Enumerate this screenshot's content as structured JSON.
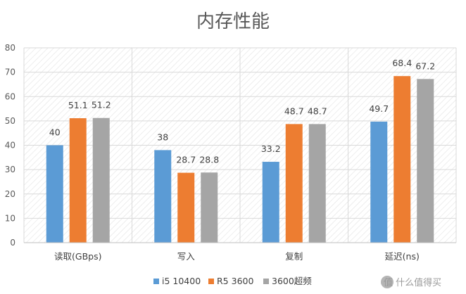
{
  "chart_data": {
    "type": "bar",
    "title": "内存性能",
    "xlabel": "",
    "ylabel": "",
    "categories": [
      "读取(GBps)",
      "写入",
      "复制",
      "延迟(ns)"
    ],
    "series": [
      {
        "name": "i5 10400",
        "color": "#5b9bd5",
        "values": [
          40,
          38,
          33.2,
          49.7
        ]
      },
      {
        "name": "R5 3600",
        "color": "#ed7d31",
        "values": [
          51.1,
          28.7,
          48.7,
          68.4
        ]
      },
      {
        "name": "3600超频",
        "color": "#a5a5a5",
        "values": [
          51.2,
          28.8,
          48.7,
          67.2
        ]
      }
    ],
    "data_labels": [
      [
        "40",
        "38",
        "33.2",
        "49.7"
      ],
      [
        "51.1",
        "28.7",
        "48.7",
        "68.4"
      ],
      [
        "51.2",
        "28.8",
        "48.7",
        "67.2"
      ]
    ],
    "ylim": [
      0,
      80
    ],
    "yticks": [
      0,
      10,
      20,
      30,
      40,
      50,
      60,
      70,
      80
    ],
    "grid": true,
    "plot_background": "hatched",
    "legend_position": "bottom"
  },
  "watermark": {
    "text": "值 什么值得买",
    "icon": "smzdm-logo-icon"
  }
}
